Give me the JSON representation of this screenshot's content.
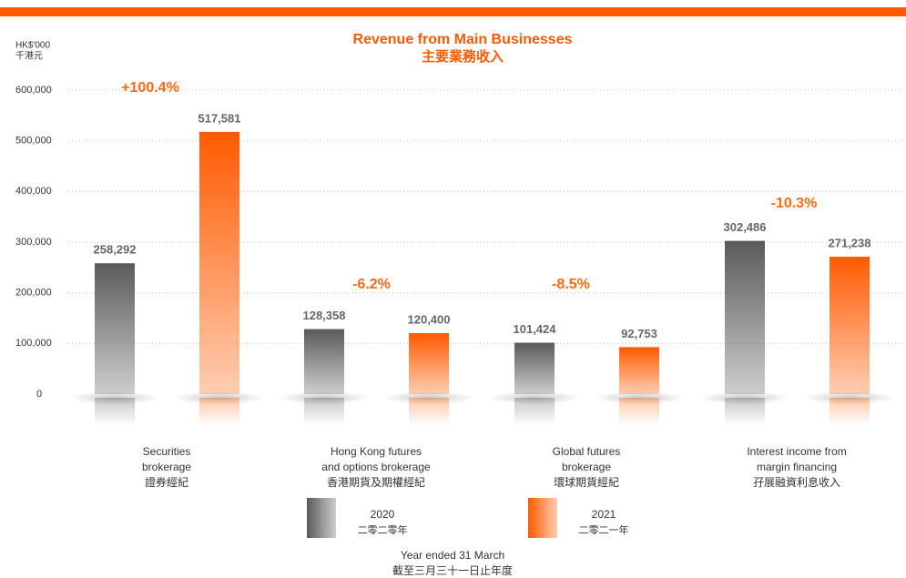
{
  "chart_data": {
    "type": "bar",
    "title": "Revenue from Main Businesses",
    "subtitle": "主要業務收入",
    "y_unit": "HK$'000",
    "y_unit_zh": "千港元",
    "x_label": "Year ended 31 March",
    "x_label_zh": "截至三月三十一日止年度",
    "categories": [
      [
        "Securities",
        "brokerage",
        "證券經紀"
      ],
      [
        "Hong Kong futures",
        "and options brokerage",
        "香港期貨及期權經紀"
      ],
      [
        "Global futures",
        "brokerage",
        "環球期貨經紀"
      ],
      [
        "Interest income from",
        "margin financing",
        "孖展融資利息收入"
      ]
    ],
    "series": [
      {
        "name": "2020",
        "name_zh": "二零二零年",
        "color": "#5a5a5a",
        "values": [
          258292,
          128358,
          101424,
          302486
        ],
        "value_labels": [
          "258,292",
          "128,358",
          "101,424",
          "302,486"
        ]
      },
      {
        "name": "2021",
        "name_zh": "二零二一年",
        "color": "#ff5a00",
        "values": [
          517581,
          120400,
          92753,
          271238
        ],
        "value_labels": [
          "517,581",
          "120,400",
          "92,753",
          "271,238"
        ]
      }
    ],
    "annotations": [
      "+100.4%",
      "-6.2%",
      "-8.5%",
      "-10.3%"
    ],
    "ylim": [
      0,
      600000
    ],
    "yticks": [
      0,
      {
        "value": 100000,
        "label": "100,000"
      },
      {
        "value": 200000,
        "label": "200,000"
      },
      {
        "value": 300000,
        "label": "300,000"
      },
      {
        "value": 400000,
        "label": "400,000"
      },
      {
        "value": 500000,
        "label": "500,000"
      },
      {
        "value": 600000,
        "label": "600,000"
      }
    ],
    "grid": true
  }
}
